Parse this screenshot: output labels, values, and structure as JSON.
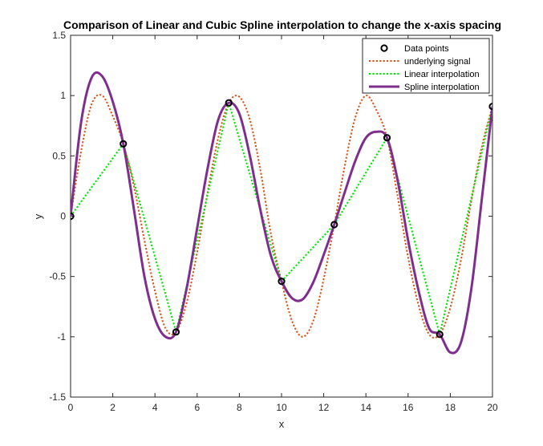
{
  "chart_data": {
    "type": "line",
    "title": "Comparison of Linear and Cubic Spline interpolation to change the x-axis spacing",
    "xlabel": "x",
    "ylabel": "y",
    "xlim": [
      0,
      20
    ],
    "ylim": [
      -1.5,
      1.5
    ],
    "x_ticks": [
      "0",
      "2",
      "4",
      "6",
      "8",
      "10",
      "12",
      "14",
      "16",
      "18",
      "20"
    ],
    "y_ticks": [
      "-1.5",
      "-1",
      "-0.5",
      "0",
      "0.5",
      "1",
      "1.5"
    ],
    "grid": false,
    "legend_position": "top-right",
    "series": [
      {
        "name": "Data points",
        "style": "markers",
        "color": "#000000",
        "x": [
          0,
          2.5,
          5,
          7.5,
          10,
          12.5,
          15,
          17.5,
          20
        ],
        "y": [
          0,
          0.6,
          -0.96,
          0.94,
          -0.54,
          -0.07,
          0.65,
          -0.98,
          0.91
        ]
      },
      {
        "name": "underlying signal",
        "style": "dotted",
        "color": "#d95319",
        "x": [
          0,
          0.5,
          1,
          1.5,
          2,
          2.5,
          3,
          3.5,
          4,
          4.5,
          5,
          5.5,
          6,
          6.5,
          7,
          7.5,
          8,
          8.5,
          9,
          9.5,
          10,
          10.5,
          11,
          11.5,
          12,
          12.5,
          13,
          13.5,
          14,
          14.5,
          15,
          15.5,
          16,
          16.5,
          17,
          17.5,
          18,
          18.5,
          19,
          19.5,
          20
        ],
        "y": [
          0,
          0.54,
          0.93,
          1.0,
          0.83,
          0.6,
          0.25,
          -0.2,
          -0.62,
          -0.93,
          -0.96,
          -0.72,
          -0.3,
          0.2,
          0.65,
          0.94,
          0.99,
          0.8,
          0.38,
          -0.15,
          -0.54,
          -0.87,
          -1.0,
          -0.87,
          -0.52,
          -0.07,
          0.42,
          0.82,
          1.0,
          0.88,
          0.65,
          0.17,
          -0.34,
          -0.74,
          -0.98,
          -0.98,
          -0.76,
          -0.37,
          0.13,
          0.58,
          0.91
        ]
      },
      {
        "name": "Linear interpolation",
        "style": "dotted",
        "color": "#00e600",
        "x": [
          0,
          2.5,
          5,
          7.5,
          10,
          12.5,
          15,
          17.5,
          20
        ],
        "y": [
          0,
          0.6,
          -0.96,
          0.94,
          -0.54,
          -0.07,
          0.65,
          -0.98,
          0.91
        ]
      },
      {
        "name": "Spline interpolation",
        "style": "solid",
        "color": "#7e2f8e",
        "x": [
          0,
          0.5,
          1,
          1.5,
          2,
          2.5,
          3,
          3.5,
          4,
          4.5,
          5,
          5.5,
          6,
          6.5,
          7,
          7.5,
          8,
          8.5,
          9,
          9.5,
          10,
          10.5,
          11,
          11.5,
          12,
          12.5,
          13,
          13.5,
          14,
          14.5,
          15,
          15.5,
          16,
          16.5,
          17,
          17.5,
          18,
          18.5,
          19,
          19.5,
          20
        ],
        "y": [
          0,
          0.78,
          1.15,
          1.16,
          0.95,
          0.6,
          0.06,
          -0.5,
          -0.85,
          -1.0,
          -0.96,
          -0.6,
          -0.1,
          0.4,
          0.8,
          0.94,
          0.85,
          0.5,
          0.05,
          -0.33,
          -0.54,
          -0.68,
          -0.69,
          -0.55,
          -0.32,
          -0.07,
          0.2,
          0.46,
          0.65,
          0.7,
          0.65,
          0.3,
          -0.2,
          -0.62,
          -0.93,
          -0.98,
          -1.13,
          -1.05,
          -0.6,
          0.15,
          0.91
        ]
      }
    ]
  }
}
